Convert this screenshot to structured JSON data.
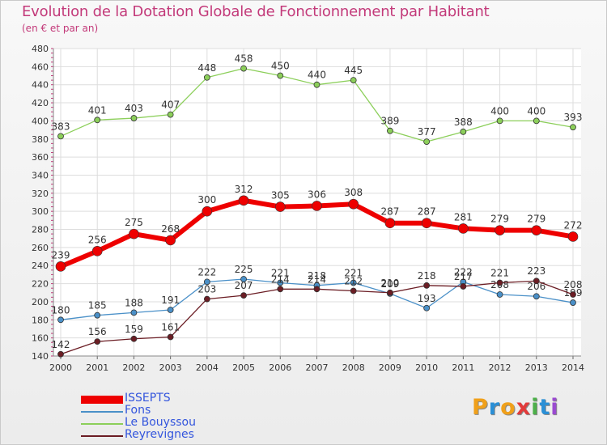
{
  "title": "Evolution de la Dotation Globale de Fonctionnement par Habitant",
  "subtitle": "(en € et par an)",
  "logo": {
    "letters": [
      "P",
      "r",
      "o",
      "x",
      "i",
      "t",
      "i"
    ],
    "colors": [
      "#f0a01a",
      "#2a8fd6",
      "#f0a01a",
      "#e23b3b",
      "#4db04a",
      "#2a8fd6",
      "#9a4ad0"
    ]
  },
  "chart_data": {
    "type": "line",
    "x": [
      2000,
      2001,
      2002,
      2003,
      2004,
      2005,
      2006,
      2007,
      2008,
      2009,
      2010,
      2011,
      2012,
      2013,
      2014
    ],
    "ylim": [
      140,
      480
    ],
    "yticks": [
      140,
      160,
      180,
      200,
      220,
      240,
      260,
      280,
      300,
      320,
      340,
      360,
      380,
      400,
      420,
      440,
      460,
      480
    ],
    "grid": true,
    "legend_position": "bottom-left",
    "series": [
      {
        "name": "ISSEPTS",
        "color": "#ee0000",
        "values": [
          239,
          256,
          275,
          268,
          300,
          312,
          305,
          306,
          308,
          287,
          287,
          281,
          279,
          279,
          272
        ]
      },
      {
        "name": "Fons",
        "color": "#4a90c8",
        "values": [
          180,
          185,
          188,
          191,
          222,
          225,
          221,
          218,
          221,
          209,
          193,
          222,
          208,
          206,
          199
        ]
      },
      {
        "name": "Le Bouyssou",
        "color": "#8ccf5a",
        "values": [
          383,
          401,
          403,
          407,
          448,
          458,
          450,
          440,
          445,
          389,
          377,
          388,
          400,
          400,
          393
        ]
      },
      {
        "name": "Reyrevignes",
        "color": "#6b1d24",
        "values": [
          142,
          156,
          159,
          161,
          203,
          207,
          214,
          214,
          212,
          210,
          218,
          217,
          221,
          223,
          208
        ]
      }
    ]
  }
}
